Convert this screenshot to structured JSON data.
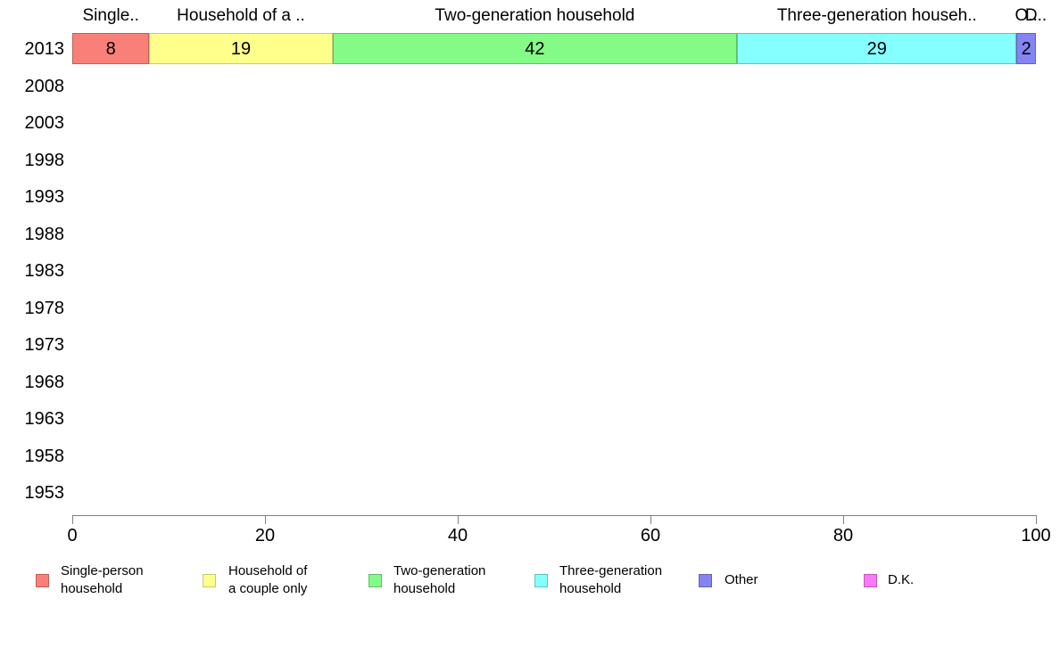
{
  "chart_data": {
    "type": "bar",
    "orientation": "horizontal",
    "stacked": true,
    "title": "",
    "x_axis": {
      "min": 0,
      "max": 100,
      "ticks": [
        0,
        20,
        40,
        60,
        80,
        100
      ],
      "grid": false
    },
    "axis_color": "#808080",
    "text_color": "#000000",
    "categories": [
      "2013",
      "2008",
      "2003",
      "1998",
      "1993",
      "1988",
      "1983",
      "1978",
      "1973",
      "1968",
      "1963",
      "1958",
      "1953"
    ],
    "legend_position": "bottom",
    "series": [
      {
        "name": "Single-person household",
        "legend_lines": [
          "Single-person",
          "household"
        ],
        "top_label": "Single..",
        "color": "#f98078",
        "border_color": "#bd6058",
        "values": [
          8,
          null,
          null,
          null,
          null,
          null,
          null,
          null,
          null,
          null,
          null,
          null,
          null
        ]
      },
      {
        "name": "Household of a couple only",
        "legend_lines": [
          "Household of",
          "a couple only"
        ],
        "top_label": "Household of a ..",
        "color": "#ffff8c",
        "border_color": "#c8c875",
        "values": [
          19,
          null,
          null,
          null,
          null,
          null,
          null,
          null,
          null,
          null,
          null,
          null,
          null
        ]
      },
      {
        "name": "Two-generation household",
        "legend_lines": [
          "Two-generation",
          "household"
        ],
        "top_label": "Two-generation household",
        "color": "#83fb86",
        "border_color": "#62bd68",
        "values": [
          42,
          null,
          null,
          null,
          null,
          null,
          null,
          null,
          null,
          null,
          null,
          null,
          null
        ]
      },
      {
        "name": "Three-generation household",
        "legend_lines": [
          "Three-generation",
          "household"
        ],
        "top_label": "Three-generation househ..",
        "color": "#85ffff",
        "border_color": "#64bfbf",
        "values": [
          29,
          null,
          null,
          null,
          null,
          null,
          null,
          null,
          null,
          null,
          null,
          null,
          null
        ]
      },
      {
        "name": "Other",
        "legend_lines": [
          "Other"
        ],
        "top_label": "O..",
        "color": "#8484f2",
        "border_color": "#6363b5",
        "values": [
          2,
          null,
          null,
          null,
          null,
          null,
          null,
          null,
          null,
          null,
          null,
          null,
          null
        ]
      },
      {
        "name": "D.K.",
        "legend_lines": [
          "D.K."
        ],
        "top_label": "D..",
        "color": "#fb78fb",
        "border_color": "#bc5abc",
        "values": [
          0,
          null,
          null,
          null,
          null,
          null,
          null,
          null,
          null,
          null,
          null,
          null,
          null
        ]
      }
    ]
  }
}
